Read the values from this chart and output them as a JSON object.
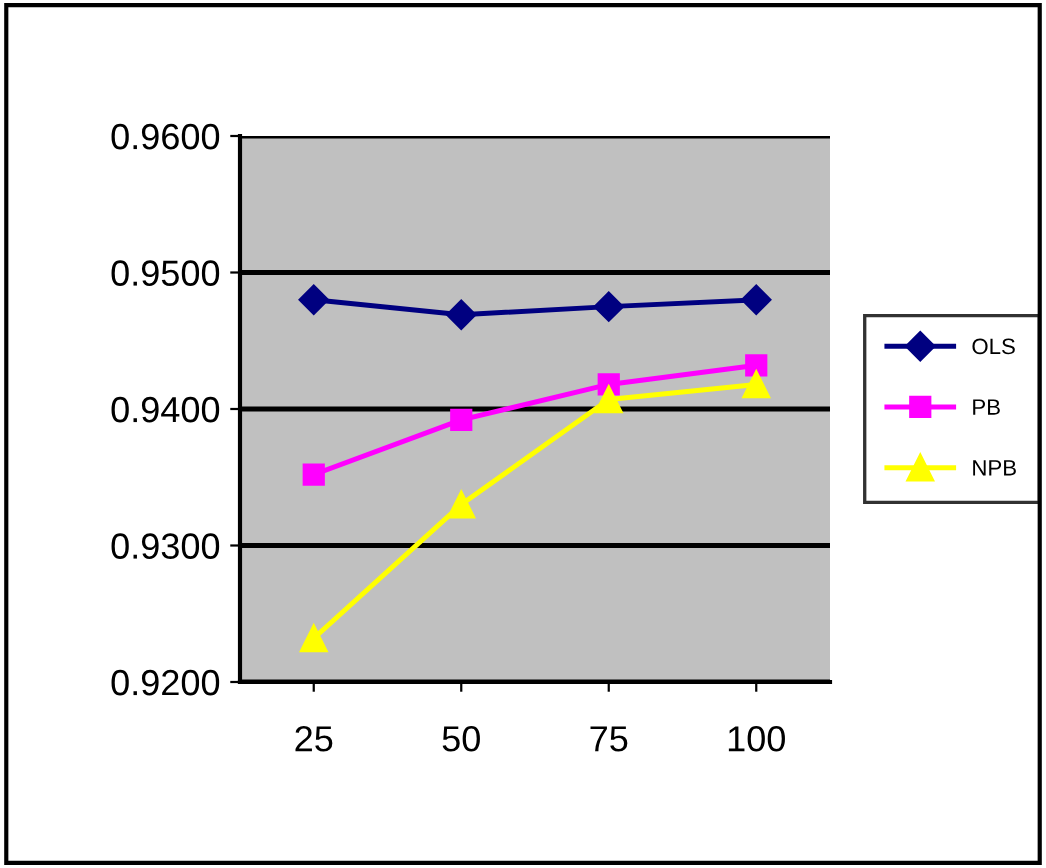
{
  "chart_data": {
    "type": "line",
    "categories": [
      "25",
      "50",
      "75",
      "100"
    ],
    "series": [
      {
        "name": "OLS",
        "color": "#000080",
        "marker": "diamond",
        "values": [
          0.948,
          0.9469,
          0.9475,
          0.948
        ]
      },
      {
        "name": "PB",
        "color": "#ff00ff",
        "marker": "square",
        "values": [
          0.9352,
          0.9392,
          0.9418,
          0.9432
        ]
      },
      {
        "name": "NPB",
        "color": "#ffff00",
        "marker": "triangle",
        "values": [
          0.9232,
          0.933,
          0.9407,
          0.9418
        ]
      }
    ],
    "ylim": [
      0.92,
      0.96
    ],
    "yticks": [
      {
        "value": 0.92,
        "label": "0.9200"
      },
      {
        "value": 0.93,
        "label": "0.9300"
      },
      {
        "value": 0.94,
        "label": "0.9400"
      },
      {
        "value": 0.95,
        "label": "0.9500"
      },
      {
        "value": 0.96,
        "label": "0.9600"
      }
    ],
    "grid": "y",
    "legend": "right",
    "line_style": "solid"
  }
}
